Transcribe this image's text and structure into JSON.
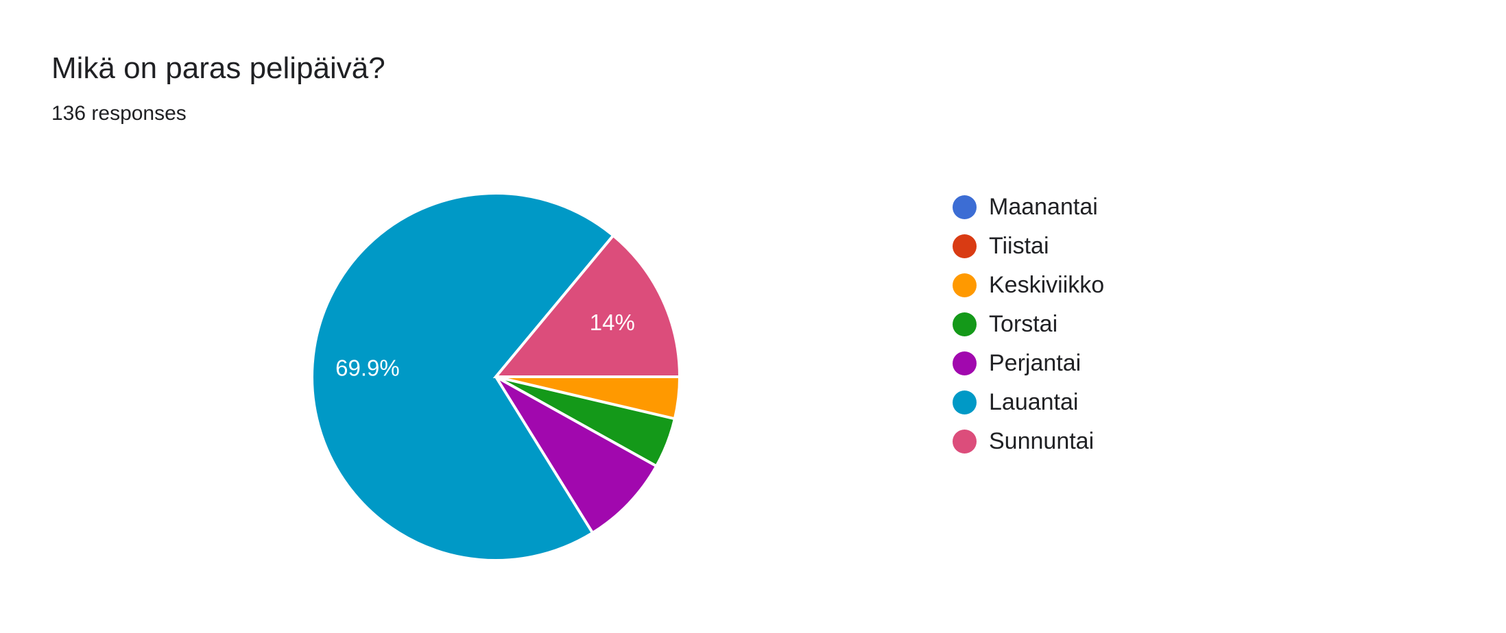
{
  "chart_data": {
    "type": "pie",
    "title": "Mikä on paras pelipäivä?",
    "subtitle": "136 responses",
    "total_responses": 136,
    "start_angle_deg_clockwise_from_north": 90,
    "direction": "clockwise",
    "legend_position": "right",
    "slice_separator_color": "#ffffff",
    "slices": [
      {
        "label": "Maanantai",
        "value": 0,
        "percent": 0,
        "pct_label": "",
        "color": "#3C6DD4"
      },
      {
        "label": "Tiistai",
        "value": 0,
        "percent": 0,
        "pct_label": "",
        "color": "#D93B13"
      },
      {
        "label": "Keskiviikko",
        "value": 5,
        "percent": 3.7,
        "pct_label": "",
        "color": "#FF9900"
      },
      {
        "label": "Torstai",
        "value": 6,
        "percent": 4.4,
        "pct_label": "",
        "color": "#149919"
      },
      {
        "label": "Perjantai",
        "value": 11,
        "percent": 8.1,
        "pct_label": "",
        "color": "#A108AE"
      },
      {
        "label": "Lauantai",
        "value": 95,
        "percent": 69.9,
        "pct_label": "69.9%",
        "color": "#0099C6"
      },
      {
        "label": "Sunnuntai",
        "value": 19,
        "percent": 14,
        "pct_label": "14%",
        "color": "#DC4D7B"
      }
    ],
    "note": "Counts for slices without visible percentage labels are estimated from arc angles"
  }
}
